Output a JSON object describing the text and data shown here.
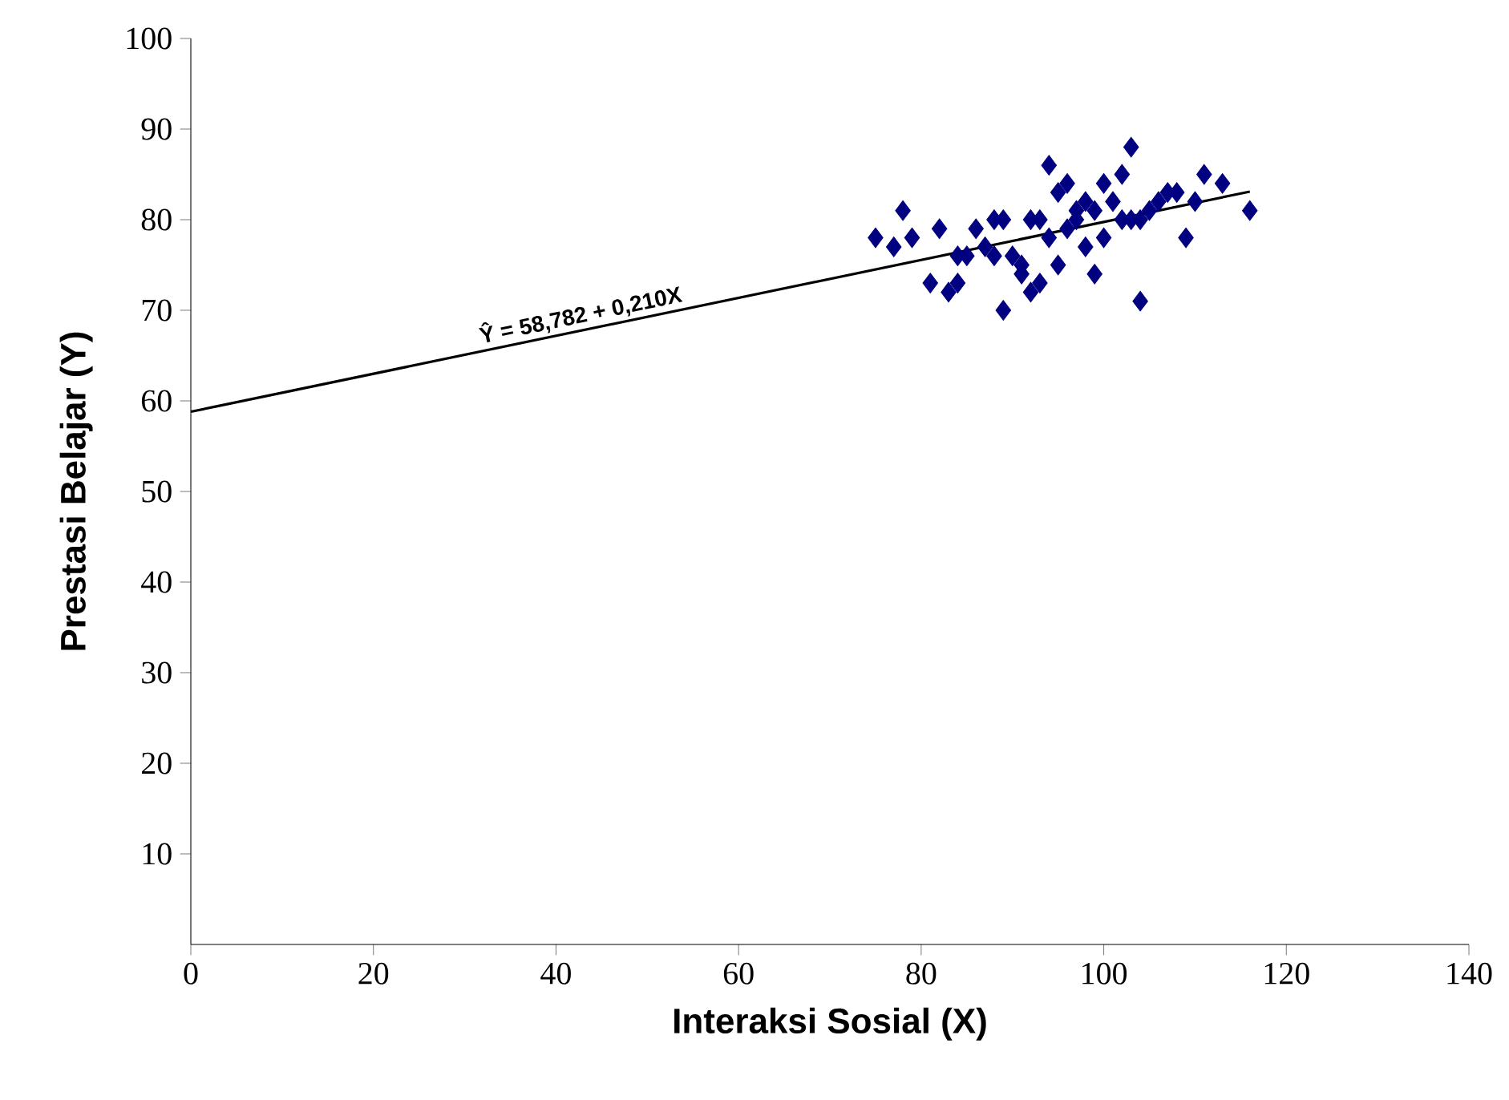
{
  "chart_data": {
    "type": "scatter",
    "xlabel": "Interaksi Sosial (X)",
    "ylabel": "Prestasi Belajar (Y)",
    "xlim": [
      0,
      140
    ],
    "xticks": [
      0,
      20,
      40,
      60,
      80,
      100,
      120,
      140
    ],
    "ylim": [
      0,
      100
    ],
    "yticks": [
      10,
      20,
      30,
      40,
      50,
      60,
      70,
      80,
      90,
      100
    ],
    "grid": false,
    "marker": "diamond",
    "annotations": [
      {
        "text": "Ŷ = 58,782 + 0,210X",
        "x": 43,
        "y": 68
      }
    ],
    "series": [
      {
        "color": "#000080",
        "x": [
          75,
          77,
          78,
          79,
          81,
          82,
          83,
          84,
          84,
          85,
          86,
          87,
          88,
          88,
          89,
          89,
          90,
          91,
          91,
          92,
          92,
          93,
          93,
          94,
          94,
          95,
          95,
          96,
          96,
          97,
          97,
          98,
          98,
          99,
          99,
          100,
          100,
          101,
          102,
          102,
          103,
          103,
          104,
          104,
          105,
          106,
          107,
          108,
          109,
          110,
          111,
          113,
          116
        ],
        "values": [
          78,
          77,
          81,
          78,
          73,
          79,
          72,
          73,
          76,
          76,
          79,
          77,
          76,
          80,
          80,
          70,
          76,
          75,
          74,
          72,
          80,
          80,
          73,
          86,
          78,
          75,
          83,
          84,
          79,
          80,
          81,
          77,
          82,
          74,
          81,
          78,
          84,
          82,
          85,
          80,
          88,
          80,
          71,
          80,
          81,
          82,
          83,
          83,
          78,
          82,
          85,
          84,
          81
        ]
      },
      {
        "type": "line",
        "color": "#000000",
        "marker": "none",
        "x": [
          0,
          116
        ],
        "values": [
          58.8,
          83.1
        ]
      }
    ]
  }
}
